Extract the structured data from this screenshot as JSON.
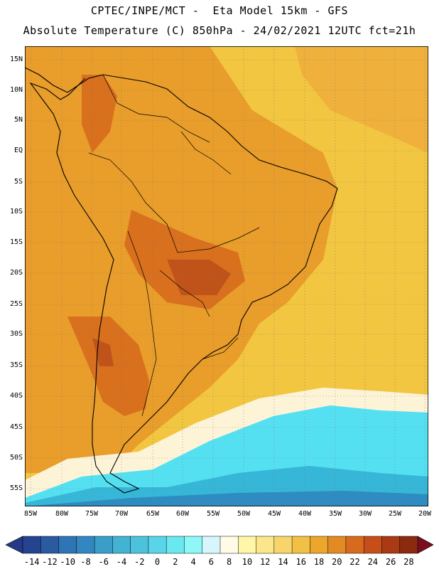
{
  "header": {
    "title_line1": "CPTEC/INPE/MCT -  Eta Model 15km - GFS",
    "title_line2": "Absolute Temperature (C) 850hPa - 24/02/2021 12UTC fct=21h"
  },
  "map": {
    "lat_labels": [
      "15N",
      "10N",
      "5N",
      "EQ",
      "5S",
      "10S",
      "15S",
      "20S",
      "25S",
      "30S",
      "35S",
      "40S",
      "45S",
      "50S",
      "55S"
    ],
    "lon_labels": [
      "85W",
      "80W",
      "75W",
      "70W",
      "65W",
      "60W",
      "55W",
      "50W",
      "45W",
      "40W",
      "35W",
      "30W",
      "25W",
      "20W"
    ],
    "colors": {
      "background_warm": "#f2c640",
      "land_warm": "#e99d2a",
      "hot": "#d8701e",
      "hottest": "#c0531a",
      "cool_band": "#fdf4d8",
      "cold_cyan": "#55e0f2",
      "cold_blue": "#36b7d8",
      "coldest": "#2e8cc0",
      "outline": "#000000"
    }
  },
  "colorbar": {
    "labels": [
      "-14",
      "-12",
      "-10",
      "-8",
      "-6",
      "-4",
      "-2",
      "0",
      "2",
      "4",
      "6",
      "8",
      "10",
      "12",
      "14",
      "16",
      "18",
      "20",
      "22",
      "24",
      "26",
      "28"
    ],
    "colors": [
      "#26438f",
      "#2a5aa0",
      "#2f74b4",
      "#3387c0",
      "#3a9ec8",
      "#44b2d2",
      "#4cc2dc",
      "#5ad4e8",
      "#6ae8ef",
      "#8ef7f7",
      "#d6f6fb",
      "#fffbe6",
      "#fff6a8",
      "#fbe78a",
      "#f7d56a",
      "#f1c044",
      "#eba62b",
      "#e38a24",
      "#d86a1e",
      "#c64f19",
      "#a93a14",
      "#8a2a10"
    ],
    "left_arrow_color": "#233a86",
    "right_arrow_color": "#7a0d20"
  }
}
